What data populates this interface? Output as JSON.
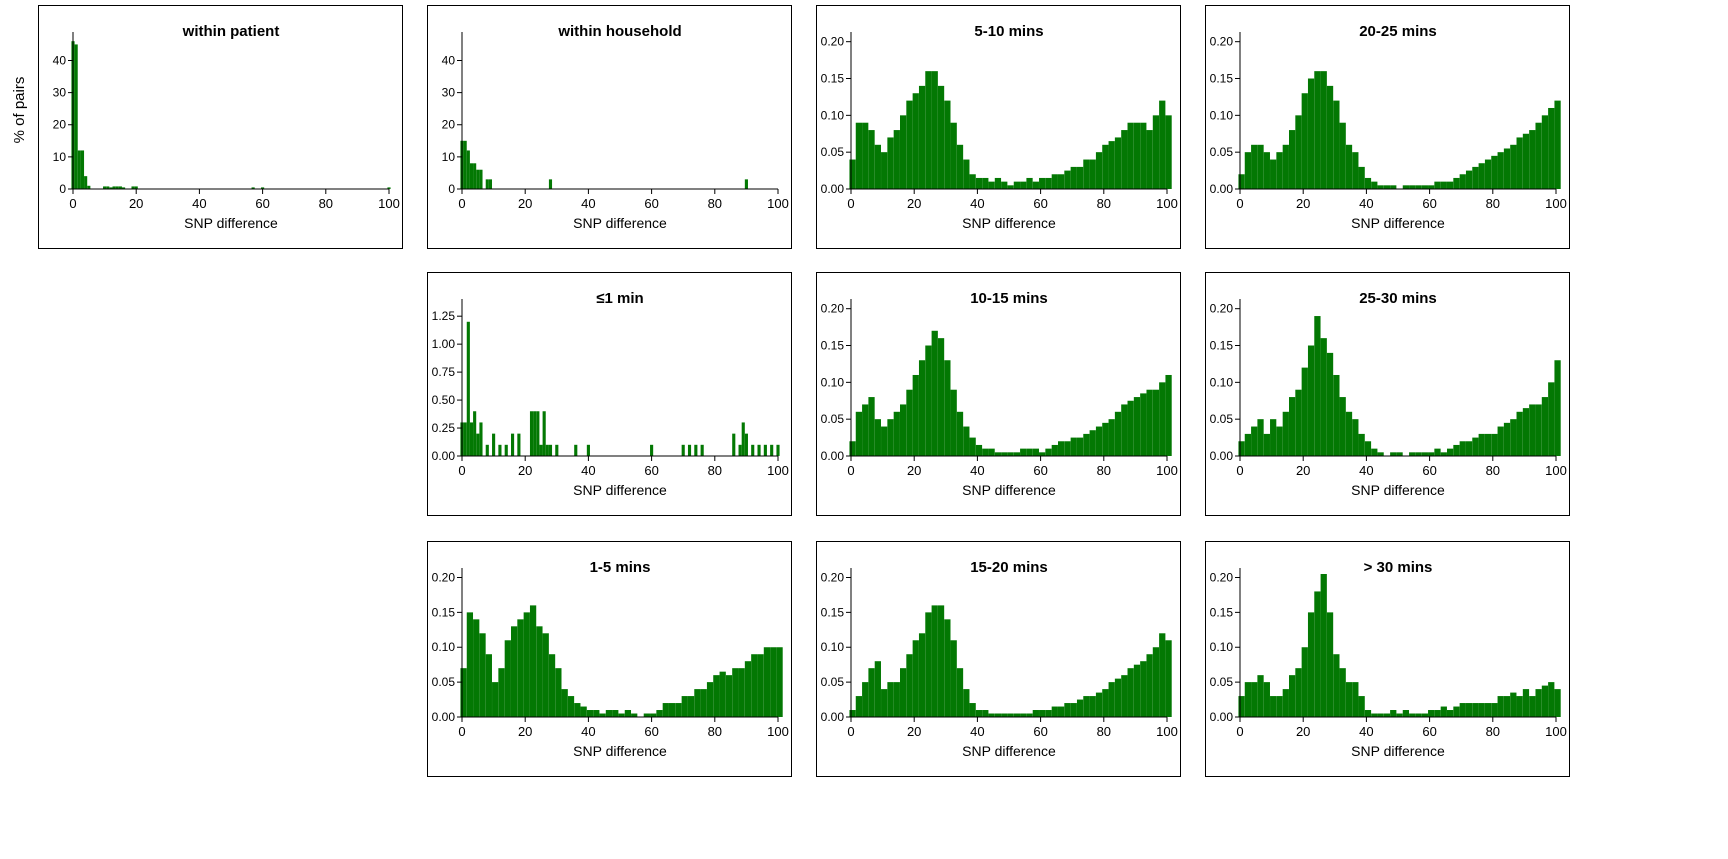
{
  "ylabel": "% of pairs",
  "colors": {
    "bar": "#037803",
    "axis": "#000000"
  },
  "chart_data": [
    {
      "id": "within-patient",
      "type": "bar",
      "title": "within patient",
      "xlabel": "SNP difference",
      "ylabel": "% of pairs",
      "xlim": [
        0,
        100
      ],
      "ylim": [
        0,
        47
      ],
      "xticks": [
        0,
        20,
        40,
        60,
        80,
        100
      ],
      "yticks": [
        0,
        10,
        20,
        30,
        40
      ],
      "ytick_labels": [
        "0",
        "10",
        "20",
        "30",
        "40"
      ],
      "x": [
        0,
        1,
        2,
        3,
        4,
        5,
        10,
        11,
        12,
        13,
        14,
        15,
        16,
        19,
        20,
        57,
        60,
        100
      ],
      "values": [
        46,
        45,
        12,
        12,
        4,
        1,
        0.8,
        0.8,
        0.5,
        0.8,
        0.8,
        0.8,
        0.5,
        0.8,
        0.8,
        0.5,
        0.5,
        0.5
      ]
    },
    {
      "id": "within-household",
      "type": "bar",
      "title": "within household",
      "xlabel": "SNP difference",
      "ylabel": "% of pairs",
      "xlim": [
        0,
        100
      ],
      "ylim": [
        0,
        47
      ],
      "xticks": [
        0,
        20,
        40,
        60,
        80,
        100
      ],
      "yticks": [
        0,
        10,
        20,
        30,
        40
      ],
      "ytick_labels": [
        "0",
        "10",
        "20",
        "30",
        "40"
      ],
      "x": [
        0,
        1,
        2,
        3,
        4,
        5,
        6,
        8,
        9,
        28,
        90
      ],
      "values": [
        15,
        15,
        12,
        8,
        8,
        6,
        6,
        3,
        3,
        3,
        3
      ]
    },
    {
      "id": "le1-min",
      "type": "bar",
      "title": "≤1 min",
      "xlabel": "SNP difference",
      "ylabel": "% of pairs",
      "xlim": [
        0,
        100
      ],
      "ylim": [
        0,
        1.35
      ],
      "xticks": [
        0,
        20,
        40,
        60,
        80,
        100
      ],
      "yticks": [
        0,
        0.25,
        0.5,
        0.75,
        1,
        1.25
      ],
      "ytick_labels": [
        "0.00",
        "0.25",
        "0.50",
        "0.75",
        "1.00",
        "1.25"
      ],
      "x": [
        0,
        1,
        2,
        3,
        4,
        5,
        6,
        8,
        10,
        12,
        14,
        16,
        18,
        22,
        23,
        24,
        25,
        26,
        27,
        28,
        30,
        36,
        40,
        60,
        70,
        72,
        74,
        76,
        86,
        88,
        89,
        90,
        92,
        94,
        96,
        98,
        100
      ],
      "values": [
        0.3,
        0.3,
        1.2,
        0.3,
        0.4,
        0.2,
        0.3,
        0.1,
        0.2,
        0.1,
        0.1,
        0.2,
        0.2,
        0.4,
        0.4,
        0.4,
        0.1,
        0.4,
        0.1,
        0.1,
        0.1,
        0.1,
        0.1,
        0.1,
        0.1,
        0.1,
        0.1,
        0.1,
        0.2,
        0.1,
        0.3,
        0.2,
        0.1,
        0.1,
        0.1,
        0.1,
        0.1
      ]
    },
    {
      "id": "1-5-mins",
      "type": "bar",
      "title": "1-5 mins",
      "xlabel": "SNP difference",
      "ylabel": "% of pairs",
      "xlim": [
        0,
        100
      ],
      "ylim": [
        0,
        0.205
      ],
      "xticks": [
        0,
        20,
        40,
        60,
        80,
        100
      ],
      "yticks": [
        0,
        0.05,
        0.1,
        0.15,
        0.2
      ],
      "ytick_labels": [
        "0.00",
        "0.05",
        "0.10",
        "0.15",
        "0.20"
      ],
      "x": [
        0,
        2,
        4,
        6,
        8,
        10,
        12,
        14,
        16,
        18,
        20,
        22,
        24,
        26,
        28,
        30,
        32,
        34,
        36,
        38,
        40,
        42,
        44,
        46,
        48,
        50,
        52,
        54,
        56,
        58,
        60,
        62,
        64,
        66,
        68,
        70,
        72,
        74,
        76,
        78,
        80,
        82,
        84,
        86,
        88,
        90,
        92,
        94,
        96,
        98,
        100
      ],
      "values": [
        0.07,
        0.15,
        0.14,
        0.12,
        0.09,
        0.05,
        0.07,
        0.11,
        0.13,
        0.14,
        0.15,
        0.16,
        0.13,
        0.12,
        0.09,
        0.07,
        0.04,
        0.03,
        0.02,
        0.015,
        0.01,
        0.01,
        0.005,
        0.01,
        0.01,
        0.005,
        0.01,
        0.005,
        0.0,
        0.005,
        0.005,
        0.01,
        0.02,
        0.02,
        0.02,
        0.03,
        0.03,
        0.04,
        0.04,
        0.05,
        0.06,
        0.065,
        0.06,
        0.07,
        0.07,
        0.08,
        0.09,
        0.09,
        0.1,
        0.1,
        0.1
      ]
    },
    {
      "id": "5-10-mins",
      "type": "bar",
      "title": "5-10 mins",
      "xlabel": "SNP difference",
      "ylabel": "% of pairs",
      "xlim": [
        0,
        100
      ],
      "ylim": [
        0,
        0.205
      ],
      "xticks": [
        0,
        20,
        40,
        60,
        80,
        100
      ],
      "yticks": [
        0,
        0.05,
        0.1,
        0.15,
        0.2
      ],
      "ytick_labels": [
        "0.00",
        "0.05",
        "0.10",
        "0.15",
        "0.20"
      ],
      "x": [
        0,
        2,
        4,
        6,
        8,
        10,
        12,
        14,
        16,
        18,
        20,
        22,
        24,
        26,
        28,
        30,
        32,
        34,
        36,
        38,
        40,
        42,
        44,
        46,
        48,
        50,
        52,
        54,
        56,
        58,
        60,
        62,
        64,
        66,
        68,
        70,
        72,
        74,
        76,
        78,
        80,
        82,
        84,
        86,
        88,
        90,
        92,
        94,
        96,
        98,
        100
      ],
      "values": [
        0.04,
        0.09,
        0.09,
        0.08,
        0.06,
        0.05,
        0.07,
        0.08,
        0.1,
        0.12,
        0.13,
        0.14,
        0.16,
        0.16,
        0.14,
        0.12,
        0.09,
        0.06,
        0.04,
        0.02,
        0.015,
        0.015,
        0.01,
        0.015,
        0.01,
        0.005,
        0.01,
        0.01,
        0.015,
        0.01,
        0.015,
        0.015,
        0.02,
        0.02,
        0.025,
        0.03,
        0.03,
        0.04,
        0.04,
        0.05,
        0.06,
        0.065,
        0.07,
        0.08,
        0.09,
        0.09,
        0.09,
        0.08,
        0.1,
        0.12,
        0.1
      ]
    },
    {
      "id": "10-15-mins",
      "type": "bar",
      "title": "10-15 mins",
      "xlabel": "SNP difference",
      "ylabel": "% of pairs",
      "xlim": [
        0,
        100
      ],
      "ylim": [
        0,
        0.205
      ],
      "xticks": [
        0,
        20,
        40,
        60,
        80,
        100
      ],
      "yticks": [
        0,
        0.05,
        0.1,
        0.15,
        0.2
      ],
      "ytick_labels": [
        "0.00",
        "0.05",
        "0.10",
        "0.15",
        "0.20"
      ],
      "x": [
        0,
        2,
        4,
        6,
        8,
        10,
        12,
        14,
        16,
        18,
        20,
        22,
        24,
        26,
        28,
        30,
        32,
        34,
        36,
        38,
        40,
        42,
        44,
        46,
        48,
        50,
        52,
        54,
        56,
        58,
        60,
        62,
        64,
        66,
        68,
        70,
        72,
        74,
        76,
        78,
        80,
        82,
        84,
        86,
        88,
        90,
        92,
        94,
        96,
        98,
        100
      ],
      "values": [
        0.02,
        0.06,
        0.07,
        0.08,
        0.05,
        0.04,
        0.05,
        0.06,
        0.07,
        0.09,
        0.11,
        0.13,
        0.15,
        0.17,
        0.16,
        0.13,
        0.09,
        0.06,
        0.04,
        0.025,
        0.015,
        0.01,
        0.01,
        0.005,
        0.005,
        0.005,
        0.005,
        0.01,
        0.01,
        0.01,
        0.005,
        0.01,
        0.015,
        0.02,
        0.02,
        0.025,
        0.025,
        0.03,
        0.035,
        0.04,
        0.045,
        0.05,
        0.06,
        0.07,
        0.075,
        0.08,
        0.085,
        0.09,
        0.09,
        0.1,
        0.11
      ]
    },
    {
      "id": "15-20-mins",
      "type": "bar",
      "title": "15-20 mins",
      "xlabel": "SNP difference",
      "ylabel": "% of pairs",
      "xlim": [
        0,
        100
      ],
      "ylim": [
        0,
        0.205
      ],
      "xticks": [
        0,
        20,
        40,
        60,
        80,
        100
      ],
      "yticks": [
        0,
        0.05,
        0.1,
        0.15,
        0.2
      ],
      "ytick_labels": [
        "0.00",
        "0.05",
        "0.10",
        "0.15",
        "0.20"
      ],
      "x": [
        0,
        2,
        4,
        6,
        8,
        10,
        12,
        14,
        16,
        18,
        20,
        22,
        24,
        26,
        28,
        30,
        32,
        34,
        36,
        38,
        40,
        42,
        44,
        46,
        48,
        50,
        52,
        54,
        56,
        58,
        60,
        62,
        64,
        66,
        68,
        70,
        72,
        74,
        76,
        78,
        80,
        82,
        84,
        86,
        88,
        90,
        92,
        94,
        96,
        98,
        100
      ],
      "values": [
        0.01,
        0.03,
        0.05,
        0.07,
        0.08,
        0.04,
        0.05,
        0.05,
        0.07,
        0.09,
        0.11,
        0.12,
        0.15,
        0.16,
        0.16,
        0.14,
        0.11,
        0.07,
        0.04,
        0.02,
        0.01,
        0.01,
        0.005,
        0.005,
        0.005,
        0.005,
        0.005,
        0.005,
        0.005,
        0.01,
        0.01,
        0.01,
        0.015,
        0.015,
        0.02,
        0.02,
        0.025,
        0.03,
        0.03,
        0.035,
        0.04,
        0.05,
        0.055,
        0.06,
        0.07,
        0.075,
        0.08,
        0.09,
        0.1,
        0.12,
        0.11
      ]
    },
    {
      "id": "20-25-mins",
      "type": "bar",
      "title": "20-25 mins",
      "xlabel": "SNP difference",
      "ylabel": "% of pairs",
      "xlim": [
        0,
        100
      ],
      "ylim": [
        0,
        0.205
      ],
      "xticks": [
        0,
        20,
        40,
        60,
        80,
        100
      ],
      "yticks": [
        0,
        0.05,
        0.1,
        0.15,
        0.2
      ],
      "ytick_labels": [
        "0.00",
        "0.05",
        "0.10",
        "0.15",
        "0.20"
      ],
      "x": [
        0,
        2,
        4,
        6,
        8,
        10,
        12,
        14,
        16,
        18,
        20,
        22,
        24,
        26,
        28,
        30,
        32,
        34,
        36,
        38,
        40,
        42,
        44,
        46,
        48,
        50,
        52,
        54,
        56,
        58,
        60,
        62,
        64,
        66,
        68,
        70,
        72,
        74,
        76,
        78,
        80,
        82,
        84,
        86,
        88,
        90,
        92,
        94,
        96,
        98,
        100
      ],
      "values": [
        0.02,
        0.05,
        0.06,
        0.06,
        0.05,
        0.04,
        0.05,
        0.06,
        0.08,
        0.1,
        0.13,
        0.15,
        0.16,
        0.16,
        0.14,
        0.12,
        0.09,
        0.06,
        0.05,
        0.03,
        0.015,
        0.01,
        0.005,
        0.005,
        0.005,
        0.0,
        0.005,
        0.005,
        0.005,
        0.005,
        0.005,
        0.01,
        0.01,
        0.01,
        0.015,
        0.02,
        0.025,
        0.03,
        0.035,
        0.04,
        0.045,
        0.05,
        0.055,
        0.06,
        0.07,
        0.075,
        0.08,
        0.09,
        0.1,
        0.11,
        0.12
      ]
    },
    {
      "id": "25-30-mins",
      "type": "bar",
      "title": "25-30 mins",
      "xlabel": "SNP difference",
      "ylabel": "% of pairs",
      "xlim": [
        0,
        100
      ],
      "ylim": [
        0,
        0.205
      ],
      "xticks": [
        0,
        20,
        40,
        60,
        80,
        100
      ],
      "yticks": [
        0,
        0.05,
        0.1,
        0.15,
        0.2
      ],
      "ytick_labels": [
        "0.00",
        "0.05",
        "0.10",
        "0.15",
        "0.20"
      ],
      "x": [
        0,
        2,
        4,
        6,
        8,
        10,
        12,
        14,
        16,
        18,
        20,
        22,
        24,
        26,
        28,
        30,
        32,
        34,
        36,
        38,
        40,
        42,
        44,
        46,
        48,
        50,
        52,
        54,
        56,
        58,
        60,
        62,
        64,
        66,
        68,
        70,
        72,
        74,
        76,
        78,
        80,
        82,
        84,
        86,
        88,
        90,
        92,
        94,
        96,
        98,
        100
      ],
      "values": [
        0.02,
        0.03,
        0.04,
        0.05,
        0.03,
        0.05,
        0.04,
        0.06,
        0.08,
        0.09,
        0.12,
        0.15,
        0.19,
        0.16,
        0.14,
        0.11,
        0.08,
        0.06,
        0.05,
        0.03,
        0.02,
        0.01,
        0.005,
        0.0,
        0.005,
        0.005,
        0.0,
        0.005,
        0.005,
        0.005,
        0.005,
        0.01,
        0.005,
        0.01,
        0.015,
        0.02,
        0.02,
        0.025,
        0.03,
        0.03,
        0.03,
        0.04,
        0.045,
        0.05,
        0.06,
        0.065,
        0.07,
        0.07,
        0.08,
        0.1,
        0.13
      ]
    },
    {
      "id": "gt30-mins",
      "type": "bar",
      "title": "> 30 mins",
      "xlabel": "SNP difference",
      "ylabel": "% of pairs",
      "xlim": [
        0,
        100
      ],
      "ylim": [
        0,
        0.205
      ],
      "xticks": [
        0,
        20,
        40,
        60,
        80,
        100
      ],
      "yticks": [
        0,
        0.05,
        0.1,
        0.15,
        0.2
      ],
      "ytick_labels": [
        "0.00",
        "0.05",
        "0.10",
        "0.15",
        "0.20"
      ],
      "x": [
        0,
        2,
        4,
        6,
        8,
        10,
        12,
        14,
        16,
        18,
        20,
        22,
        24,
        26,
        28,
        30,
        32,
        34,
        36,
        38,
        40,
        42,
        44,
        46,
        48,
        50,
        52,
        54,
        56,
        58,
        60,
        62,
        64,
        66,
        68,
        70,
        72,
        74,
        76,
        78,
        80,
        82,
        84,
        86,
        88,
        90,
        92,
        94,
        96,
        98,
        100
      ],
      "values": [
        0.03,
        0.05,
        0.05,
        0.06,
        0.05,
        0.03,
        0.03,
        0.04,
        0.06,
        0.07,
        0.1,
        0.15,
        0.18,
        0.21,
        0.15,
        0.09,
        0.07,
        0.05,
        0.05,
        0.03,
        0.01,
        0.005,
        0.005,
        0.005,
        0.01,
        0.005,
        0.01,
        0.005,
        0.005,
        0.005,
        0.01,
        0.01,
        0.015,
        0.01,
        0.015,
        0.02,
        0.02,
        0.02,
        0.02,
        0.02,
        0.02,
        0.03,
        0.03,
        0.035,
        0.03,
        0.04,
        0.03,
        0.04,
        0.045,
        0.05,
        0.04
      ]
    }
  ]
}
